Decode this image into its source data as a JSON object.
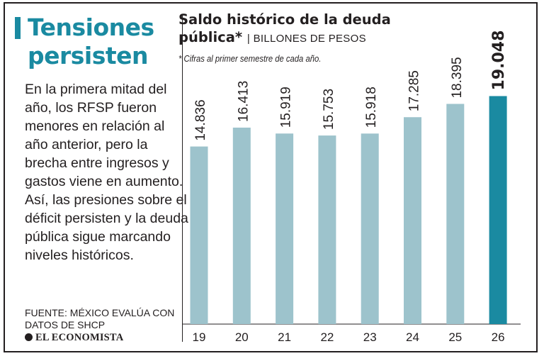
{
  "headline": [
    "Tensiones",
    "persisten"
  ],
  "body_text": "En la primera mitad del año, los RFSP fueron menores en relación al año anterior, pero la brecha entre ingresos y gastos viene en aumento. Así, las presiones sobre el déficit persisten y la deuda pública sigue marcando niveles históricos.",
  "source": "Fuente: México Evalúa con datos de SHCP",
  "brand": "EL ECONOMISTA",
  "colors": {
    "accent": "#1a8aa1",
    "bar": "#9dc3cc",
    "bar_highlight": "#1a8aa1",
    "text": "#231f20"
  },
  "chart_data": {
    "type": "bar",
    "title": "Saldo histórico de la deuda pública*",
    "units": "BILLONES DE PESOS",
    "note": "* Cifras al primer semestre de cada año.",
    "categories": [
      "19",
      "20",
      "21",
      "22",
      "23",
      "24",
      "25",
      "26"
    ],
    "values": [
      14.836,
      16.413,
      15.919,
      15.753,
      15.918,
      17.285,
      18.395,
      19.048
    ],
    "data_labels": [
      "14.836",
      "16.413",
      "15.919",
      "15.753",
      "15.918",
      "17.285",
      "18.395",
      "19.048"
    ],
    "highlight_index": 7,
    "ylim": [
      0,
      21.15
    ],
    "grid": false,
    "legend": "none"
  }
}
